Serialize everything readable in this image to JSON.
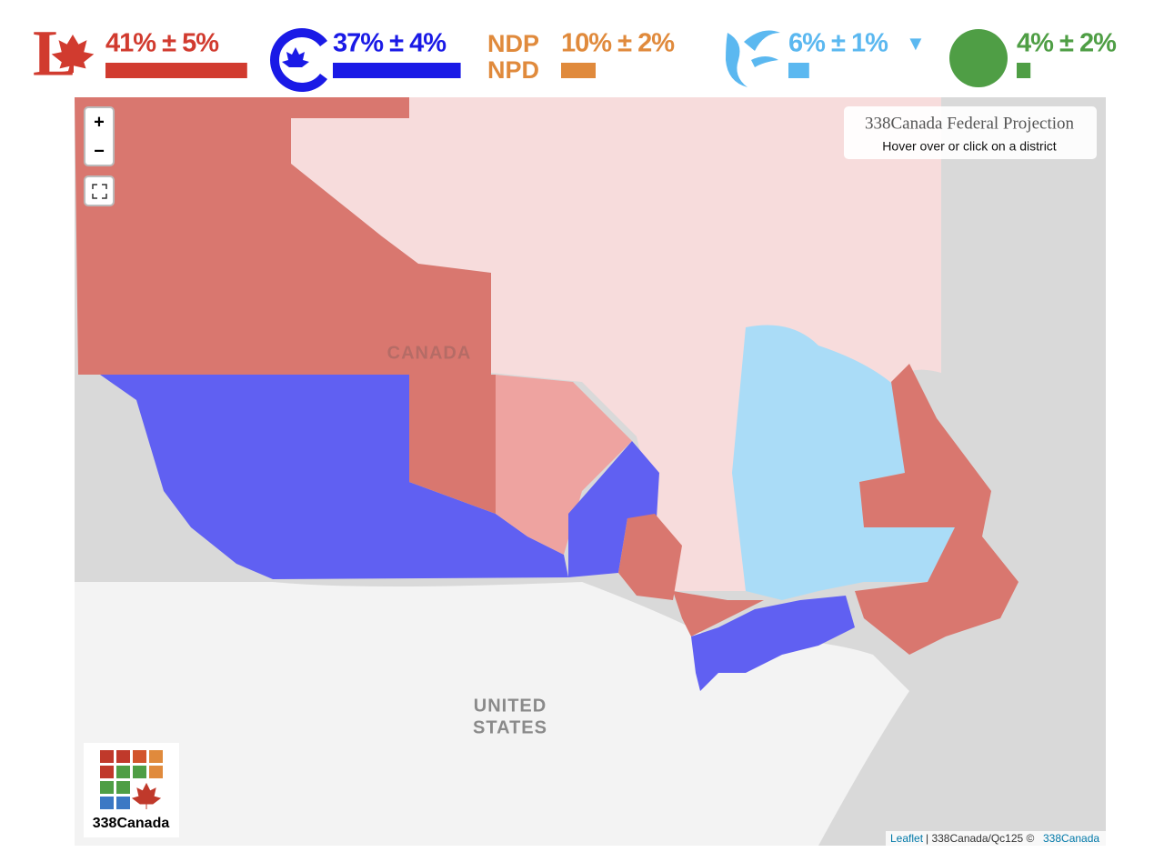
{
  "parties": [
    {
      "label": "41% ± 5%",
      "value": 41,
      "color": "#d13b2f"
    },
    {
      "label": "37% ± 4%",
      "value": 37,
      "color": "#1a1ae6"
    },
    {
      "logo": [
        "NDP",
        "NPD"
      ],
      "label": "10% ± 2%",
      "value": 10,
      "color": "#e08a3c"
    },
    {
      "label": "6% ± 1%",
      "trend": "▼",
      "value": 6,
      "color": "#5bb8f0"
    },
    {
      "label": "4% ± 2%",
      "value": 4,
      "color": "#4f9e45"
    }
  ],
  "map": {
    "controls": [
      "+",
      "−"
    ],
    "info": {
      "title": "338Canada Federal Projection",
      "hint": "Hover over or click on a district"
    },
    "labels": [
      "CANADA",
      "UNITED",
      "STATES"
    ],
    "logo": "338Canada",
    "attribution": {
      "link": "Leaflet",
      "text": "| 338Canada/Qc125 ©",
      "source": "338Canada"
    }
  }
}
